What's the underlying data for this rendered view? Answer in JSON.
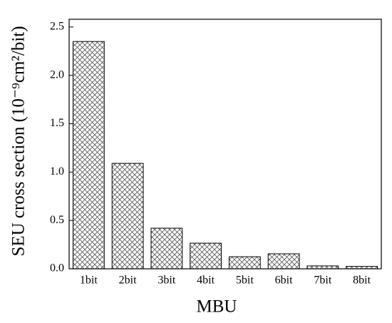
{
  "chart_data": {
    "type": "bar",
    "x_label": "MBU",
    "y_label": "SEU cross section (10⁻⁹cm²/bit)",
    "categories": [
      "1bit",
      "2bit",
      "3bit",
      "4bit",
      "5bit",
      "6bit",
      "7bit",
      "8bit"
    ],
    "values": [
      2.35,
      1.09,
      0.42,
      0.265,
      0.125,
      0.155,
      0.03,
      0.025
    ],
    "color": "#555555",
    "ylim": [
      0,
      2.58
    ],
    "yticks": [
      {
        "value": 0,
        "label": "0.0"
      },
      0.5,
      {
        "value": 1,
        "label": "1.0"
      },
      1.5,
      {
        "value": 2,
        "label": "2.0"
      },
      2.5
    ],
    "grid": false
  }
}
